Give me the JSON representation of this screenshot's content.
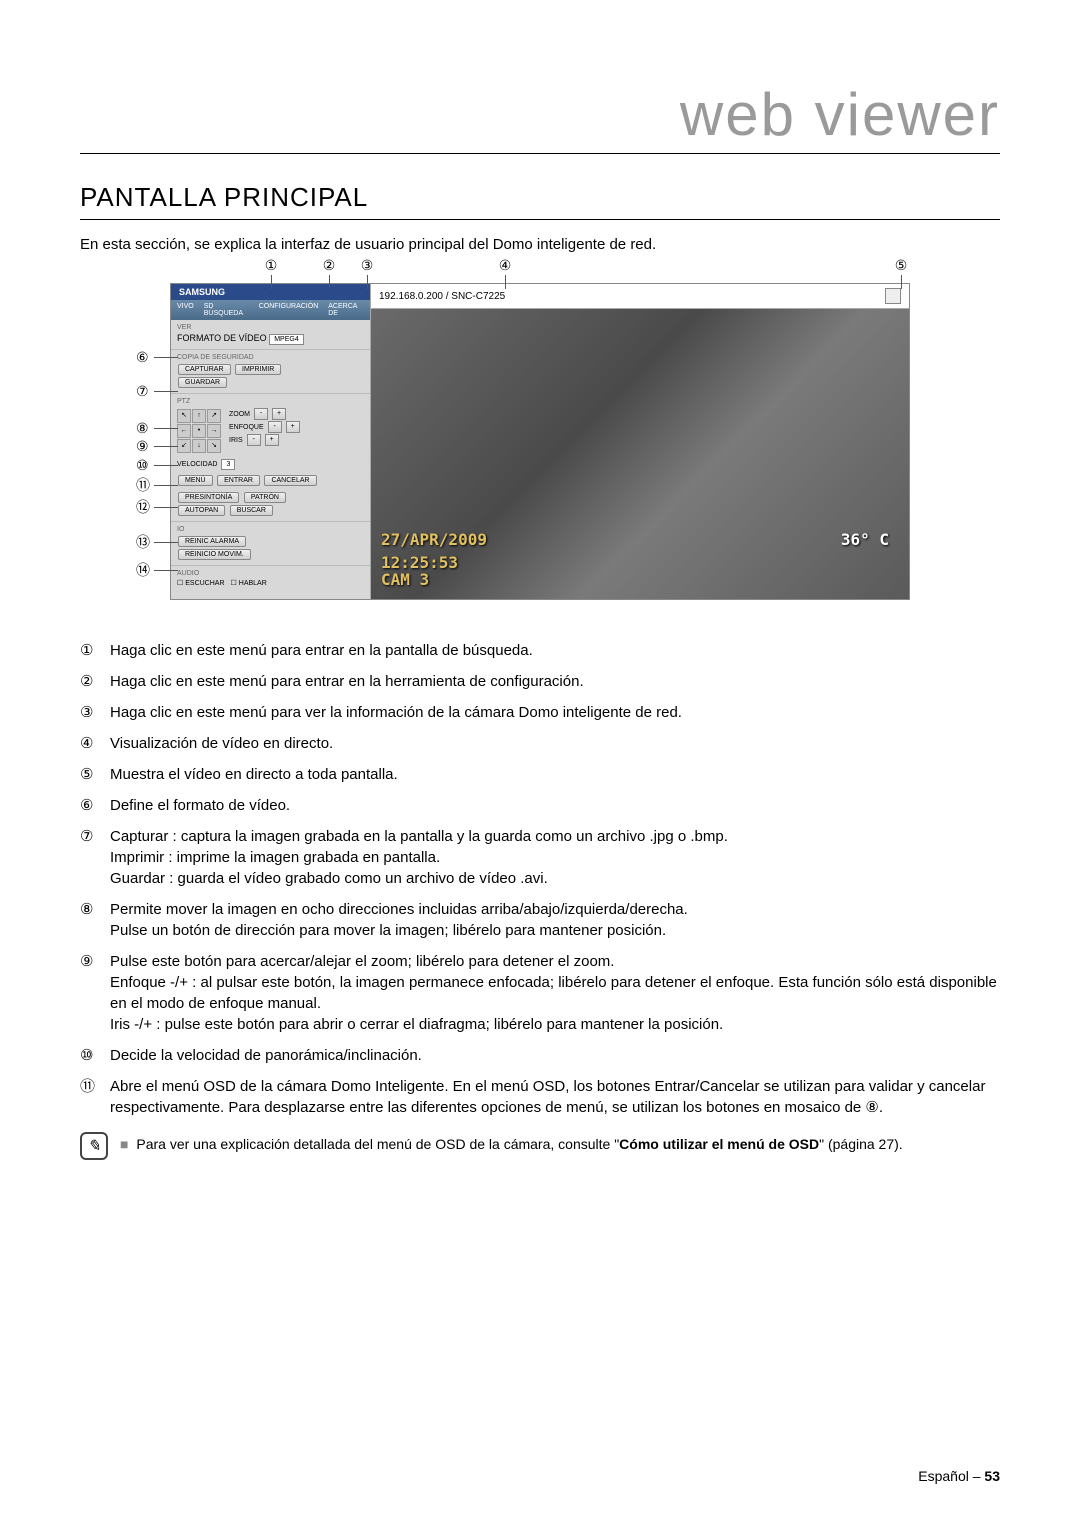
{
  "header": {
    "title": "web viewer"
  },
  "section": {
    "title": "PANTALLA PRINCIPAL"
  },
  "intro": "En esta sección, se explica la interfaz de usuario principal del Domo inteligente de red.",
  "callouts_top": [
    "①",
    "②",
    "③",
    "④",
    "⑤"
  ],
  "callouts_left": [
    "⑥",
    "⑦",
    "⑧",
    "⑨",
    "⑩",
    "⑪",
    "⑫",
    "⑬",
    "⑭"
  ],
  "screenshot": {
    "logo": "SAMSUNG",
    "tabs": [
      "VIVO",
      "SD BÚSQUEDA",
      "CONFIGURACIÓN",
      "ACERCA DE"
    ],
    "ver_title": "VER",
    "format_label": "FORMATO DE VÍDEO",
    "format_value": "MPEG4",
    "backup_title": "COPIA DE SEGURIDAD",
    "btn_capturar": "CAPTURAR",
    "btn_imprimir": "IMPRIMIR",
    "btn_guardar": "GUARDAR",
    "ptz_title": "PTZ",
    "zoom_label": "ZOOM",
    "enfoque_label": "ENFOQUE",
    "iris_label": "IRIS",
    "velocidad_label": "VELOCIDAD",
    "velocidad_value": "3",
    "btn_menu": "MENÚ",
    "btn_entrar": "ENTRAR",
    "btn_cancelar": "CANCELAR",
    "btn_presintonia": "PRESINTONÍA",
    "btn_patron": "PATRÓN",
    "btn_autopan": "AUTOPAN",
    "btn_buscar": "BUSCAR",
    "io_title": "IO",
    "btn_reinic_alarma": "REINIC ALARMA",
    "btn_reinicio_movim": "REINICIO MOVIM.",
    "audio_title": "AUDIO",
    "chk_escuchar": "ESCUCHAR",
    "chk_hablar": "HABLAR",
    "address": "192.168.0.200 / SNC-C7225",
    "osd_date": "27/APR/2009",
    "osd_time": "12:25:53",
    "osd_cam": "CAM 3",
    "osd_angle": "36° C"
  },
  "list": [
    {
      "n": "①",
      "t": "Haga clic en este menú para entrar en la pantalla de búsqueda."
    },
    {
      "n": "②",
      "t": "Haga clic en este menú para entrar en la herramienta de configuración."
    },
    {
      "n": "③",
      "t": "Haga clic en este menú para ver la información de la cámara Domo inteligente de red."
    },
    {
      "n": "④",
      "t": "Visualización de vídeo en directo."
    },
    {
      "n": "⑤",
      "t": "Muestra el vídeo en directo a toda pantalla."
    },
    {
      "n": "⑥",
      "t": "Define el formato de vídeo."
    },
    {
      "n": "⑦",
      "t": "Capturar : captura la imagen grabada en la pantalla y la guarda como un archivo .jpg o .bmp.\nImprimir : imprime la imagen grabada en pantalla.\nGuardar : guarda el vídeo grabado como un archivo de vídeo .avi."
    },
    {
      "n": "⑧",
      "t": "Permite mover la imagen en ocho direcciones incluidas arriba/abajo/izquierda/derecha.\nPulse un botón de dirección para mover la imagen; libérelo para mantener posición."
    },
    {
      "n": "⑨",
      "t": "Pulse este botón para acercar/alejar el zoom; libérelo para detener el zoom.\nEnfoque -/+ : al pulsar este botón, la imagen permanece enfocada; libérelo para detener el enfoque. Esta función sólo está disponible en el modo de enfoque manual.\nIris -/+ : pulse este botón para abrir o cerrar el diafragma; libérelo para mantener la posición."
    },
    {
      "n": "⑩",
      "t": "Decide la velocidad de panorámica/inclinación."
    },
    {
      "n": "⑪",
      "t": "Abre el menú OSD de la cámara Domo Inteligente. En el menú OSD, los botones Entrar/Cancelar se utilizan para validar y cancelar respectivamente. Para desplazarse entre las diferentes opciones de menú, se utilizan los botones en mosaico de ⑧."
    }
  ],
  "note": {
    "prefix": "Para ver una explicación detallada del menú de OSD de la cámara, consulte \"",
    "bold": "Cómo utilizar el menú de OSD",
    "suffix": "\" (página 27)."
  },
  "footer": {
    "lang": "Español –",
    "page": "53"
  }
}
